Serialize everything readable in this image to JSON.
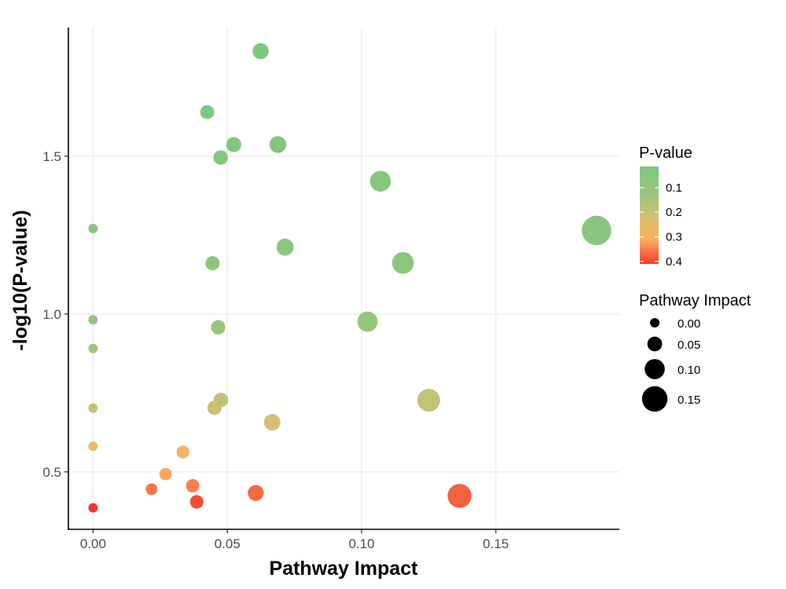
{
  "chart_data": {
    "type": "scatter",
    "xlabel": "Pathway Impact",
    "ylabel": "-log10(P-value)",
    "xlim": [
      -0.0092,
      0.196
    ],
    "ylim": [
      0.318,
      1.908
    ],
    "x_ticks": [
      0.0,
      0.05,
      0.1,
      0.15
    ],
    "x_tick_labels": [
      "0.00",
      "0.05",
      "0.10",
      "0.15"
    ],
    "y_ticks": [
      0.5,
      1.0,
      1.5
    ],
    "y_tick_labels": [
      "0.5",
      "1.0",
      "1.5"
    ],
    "grid": true,
    "colors": {
      "low_p": "#7DC77F",
      "mid1": "#9EC57C",
      "mid2": "#DDBE71",
      "mid3": "#FFAE5E",
      "high_p": "#EE3A2D"
    },
    "color_legend": {
      "title": "P-value",
      "ticks": [
        0.1,
        0.2,
        0.3,
        0.4
      ],
      "labels": [
        "0.1",
        "0.2",
        "0.3",
        "0.4"
      ],
      "range": [
        0.014,
        0.41
      ]
    },
    "size_legend": {
      "title": "Pathway Impact",
      "values": [
        0.0,
        0.05,
        0.1,
        0.15
      ],
      "labels": [
        "0.00",
        "0.05",
        "0.10",
        "0.15"
      ]
    },
    "points": [
      {
        "x": 0.0624,
        "y": 1.833
      },
      {
        "x": 0.0425,
        "y": 1.64
      },
      {
        "x": 0.0524,
        "y": 1.537
      },
      {
        "x": 0.0688,
        "y": 1.537
      },
      {
        "x": 0.0475,
        "y": 1.496
      },
      {
        "x": 0.107,
        "y": 1.421
      },
      {
        "x": 0.0,
        "y": 1.271
      },
      {
        "x": 0.1875,
        "y": 1.265
      },
      {
        "x": 0.0715,
        "y": 1.212
      },
      {
        "x": 0.0445,
        "y": 1.161
      },
      {
        "x": 0.1154,
        "y": 1.162
      },
      {
        "x": 0.0,
        "y": 0.982
      },
      {
        "x": 0.1022,
        "y": 0.976
      },
      {
        "x": 0.0466,
        "y": 0.958
      },
      {
        "x": 0.0,
        "y": 0.891
      },
      {
        "x": 0.0476,
        "y": 0.728
      },
      {
        "x": 0.125,
        "y": 0.727
      },
      {
        "x": 0.0,
        "y": 0.702
      },
      {
        "x": 0.0452,
        "y": 0.703
      },
      {
        "x": 0.0667,
        "y": 0.657
      },
      {
        "x": 0.0,
        "y": 0.581
      },
      {
        "x": 0.0335,
        "y": 0.563
      },
      {
        "x": 0.027,
        "y": 0.493
      },
      {
        "x": 0.0371,
        "y": 0.456
      },
      {
        "x": 0.0218,
        "y": 0.445
      },
      {
        "x": 0.0606,
        "y": 0.433
      },
      {
        "x": 0.1365,
        "y": 0.424
      },
      {
        "x": 0.0386,
        "y": 0.405
      },
      {
        "x": 0.0,
        "y": 0.386
      }
    ]
  }
}
